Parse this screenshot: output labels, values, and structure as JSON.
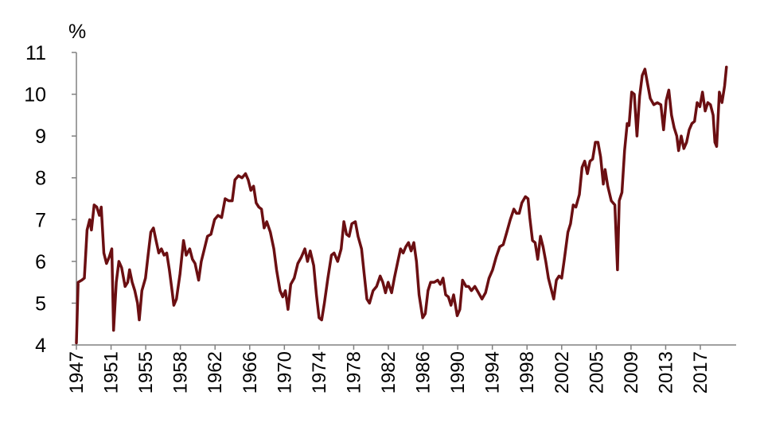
{
  "chart_data": {
    "type": "line",
    "title": "",
    "xlabel": "",
    "ylabel": "%",
    "ylim": [
      4,
      11
    ],
    "yticks": [
      4,
      5,
      6,
      7,
      8,
      9,
      10,
      11
    ],
    "xlim": [
      1947,
      2021.5
    ],
    "xtick_labels": [
      "1947",
      "1951",
      "1955",
      "1958",
      "1962",
      "1966",
      "1970",
      "1974",
      "1978",
      "1982",
      "1986",
      "1990",
      "1994",
      "1998",
      "2002",
      "2005",
      "2009",
      "2013",
      "2017"
    ],
    "grid": false,
    "legend": "none",
    "colors": {
      "line": "#6b0f12",
      "axis": "#808080"
    },
    "series": [
      {
        "values": [
          [
            1947.0,
            4.05
          ],
          [
            1947.2,
            5.5
          ],
          [
            1947.6,
            5.55
          ],
          [
            1947.9,
            5.6
          ],
          [
            1948.2,
            6.75
          ],
          [
            1948.5,
            7.0
          ],
          [
            1948.7,
            6.75
          ],
          [
            1949.0,
            7.35
          ],
          [
            1949.3,
            7.3
          ],
          [
            1949.6,
            7.1
          ],
          [
            1949.8,
            7.3
          ],
          [
            1950.1,
            6.2
          ],
          [
            1950.4,
            5.95
          ],
          [
            1950.7,
            6.1
          ],
          [
            1951.0,
            6.3
          ],
          [
            1951.2,
            4.35
          ],
          [
            1951.5,
            5.5
          ],
          [
            1951.8,
            6.0
          ],
          [
            1952.1,
            5.85
          ],
          [
            1952.5,
            5.4
          ],
          [
            1952.8,
            5.5
          ],
          [
            1953.0,
            5.8
          ],
          [
            1953.3,
            5.5
          ],
          [
            1953.6,
            5.3
          ],
          [
            1953.9,
            5.0
          ],
          [
            1954.1,
            4.6
          ],
          [
            1954.4,
            5.3
          ],
          [
            1954.8,
            5.6
          ],
          [
            1955.1,
            6.15
          ],
          [
            1955.4,
            6.7
          ],
          [
            1955.7,
            6.8
          ],
          [
            1956.0,
            6.5
          ],
          [
            1956.3,
            6.2
          ],
          [
            1956.6,
            6.3
          ],
          [
            1956.9,
            6.15
          ],
          [
            1957.2,
            6.2
          ],
          [
            1957.5,
            5.8
          ],
          [
            1957.8,
            5.3
          ],
          [
            1958.0,
            4.95
          ],
          [
            1958.3,
            5.1
          ],
          [
            1958.7,
            5.7
          ],
          [
            1959.1,
            6.5
          ],
          [
            1959.4,
            6.15
          ],
          [
            1959.8,
            6.3
          ],
          [
            1960.1,
            6.05
          ],
          [
            1960.4,
            5.95
          ],
          [
            1960.8,
            5.55
          ],
          [
            1961.1,
            6.0
          ],
          [
            1961.4,
            6.25
          ],
          [
            1961.8,
            6.6
          ],
          [
            1962.2,
            6.65
          ],
          [
            1962.6,
            7.0
          ],
          [
            1963.0,
            7.1
          ],
          [
            1963.4,
            7.05
          ],
          [
            1963.8,
            7.5
          ],
          [
            1964.2,
            7.45
          ],
          [
            1964.6,
            7.45
          ],
          [
            1964.9,
            7.95
          ],
          [
            1965.3,
            8.05
          ],
          [
            1965.7,
            8.0
          ],
          [
            1966.1,
            8.1
          ],
          [
            1966.4,
            7.95
          ],
          [
            1966.7,
            7.7
          ],
          [
            1967.0,
            7.8
          ],
          [
            1967.3,
            7.4
          ],
          [
            1967.6,
            7.3
          ],
          [
            1967.9,
            7.25
          ],
          [
            1968.2,
            6.8
          ],
          [
            1968.5,
            6.95
          ],
          [
            1968.9,
            6.7
          ],
          [
            1969.3,
            6.3
          ],
          [
            1969.6,
            5.8
          ],
          [
            1970.0,
            5.3
          ],
          [
            1970.3,
            5.15
          ],
          [
            1970.6,
            5.3
          ],
          [
            1970.9,
            4.85
          ],
          [
            1971.2,
            5.45
          ],
          [
            1971.6,
            5.6
          ],
          [
            1972.0,
            5.95
          ],
          [
            1972.4,
            6.1
          ],
          [
            1972.8,
            6.3
          ],
          [
            1973.1,
            6.0
          ],
          [
            1973.4,
            6.25
          ],
          [
            1973.8,
            5.9
          ],
          [
            1974.1,
            5.2
          ],
          [
            1974.4,
            4.65
          ],
          [
            1974.7,
            4.6
          ],
          [
            1975.0,
            5.0
          ],
          [
            1975.4,
            5.6
          ],
          [
            1975.8,
            6.15
          ],
          [
            1976.1,
            6.2
          ],
          [
            1976.5,
            6.0
          ],
          [
            1976.9,
            6.3
          ],
          [
            1977.2,
            6.95
          ],
          [
            1977.5,
            6.65
          ],
          [
            1977.8,
            6.6
          ],
          [
            1978.1,
            6.9
          ],
          [
            1978.5,
            6.95
          ],
          [
            1978.8,
            6.6
          ],
          [
            1979.2,
            6.3
          ],
          [
            1979.5,
            5.7
          ],
          [
            1979.8,
            5.1
          ],
          [
            1980.1,
            5.0
          ],
          [
            1980.5,
            5.3
          ],
          [
            1980.9,
            5.4
          ],
          [
            1981.3,
            5.65
          ],
          [
            1981.6,
            5.5
          ],
          [
            1981.9,
            5.25
          ],
          [
            1982.2,
            5.5
          ],
          [
            1982.6,
            5.25
          ],
          [
            1982.9,
            5.6
          ],
          [
            1983.3,
            6.0
          ],
          [
            1983.6,
            6.3
          ],
          [
            1983.9,
            6.2
          ],
          [
            1984.2,
            6.35
          ],
          [
            1984.5,
            6.45
          ],
          [
            1984.8,
            6.25
          ],
          [
            1985.1,
            6.45
          ],
          [
            1985.4,
            6.0
          ],
          [
            1985.7,
            5.2
          ],
          [
            1986.1,
            4.65
          ],
          [
            1986.4,
            4.75
          ],
          [
            1986.7,
            5.3
          ],
          [
            1987.0,
            5.5
          ],
          [
            1987.4,
            5.5
          ],
          [
            1987.8,
            5.55
          ],
          [
            1988.1,
            5.45
          ],
          [
            1988.4,
            5.6
          ],
          [
            1988.7,
            5.2
          ],
          [
            1989.0,
            5.15
          ],
          [
            1989.3,
            4.95
          ],
          [
            1989.6,
            5.2
          ],
          [
            1990.0,
            4.7
          ],
          [
            1990.3,
            4.85
          ],
          [
            1990.6,
            5.55
          ],
          [
            1991.0,
            5.4
          ],
          [
            1991.3,
            5.4
          ],
          [
            1991.6,
            5.3
          ],
          [
            1992.0,
            5.4
          ],
          [
            1992.4,
            5.25
          ],
          [
            1992.8,
            5.1
          ],
          [
            1993.2,
            5.25
          ],
          [
            1993.6,
            5.6
          ],
          [
            1994.0,
            5.8
          ],
          [
            1994.4,
            6.1
          ],
          [
            1994.8,
            6.35
          ],
          [
            1995.2,
            6.4
          ],
          [
            1995.6,
            6.7
          ],
          [
            1996.0,
            7.0
          ],
          [
            1996.4,
            7.25
          ],
          [
            1996.7,
            7.15
          ],
          [
            1997.0,
            7.15
          ],
          [
            1997.3,
            7.4
          ],
          [
            1997.7,
            7.55
          ],
          [
            1998.0,
            7.5
          ],
          [
            1998.2,
            7.05
          ],
          [
            1998.5,
            6.5
          ],
          [
            1998.8,
            6.45
          ],
          [
            1999.1,
            6.05
          ],
          [
            1999.4,
            6.6
          ],
          [
            1999.7,
            6.35
          ],
          [
            2000.0,
            6.0
          ],
          [
            2000.3,
            5.6
          ],
          [
            2000.6,
            5.35
          ],
          [
            2000.9,
            5.1
          ],
          [
            2001.2,
            5.55
          ],
          [
            2001.5,
            5.65
          ],
          [
            2001.8,
            5.6
          ],
          [
            2002.1,
            6.05
          ],
          [
            2002.5,
            6.7
          ],
          [
            2002.8,
            6.9
          ],
          [
            2003.1,
            7.35
          ],
          [
            2003.4,
            7.3
          ],
          [
            2003.8,
            7.6
          ],
          [
            2004.1,
            8.25
          ],
          [
            2004.4,
            8.4
          ],
          [
            2004.7,
            8.1
          ],
          [
            2005.0,
            8.4
          ],
          [
            2005.3,
            8.45
          ],
          [
            2005.6,
            8.85
          ],
          [
            2005.9,
            8.85
          ],
          [
            2006.2,
            8.5
          ],
          [
            2006.5,
            7.85
          ],
          [
            2006.7,
            8.2
          ],
          [
            2007.0,
            7.8
          ],
          [
            2007.4,
            7.45
          ],
          [
            2007.8,
            7.35
          ],
          [
            2008.1,
            5.8
          ],
          [
            2008.3,
            7.45
          ],
          [
            2008.6,
            7.65
          ],
          [
            2008.9,
            8.65
          ],
          [
            2009.2,
            9.3
          ],
          [
            2009.4,
            9.25
          ],
          [
            2009.7,
            10.05
          ],
          [
            2010.0,
            10.0
          ],
          [
            2010.3,
            9.0
          ],
          [
            2010.6,
            9.95
          ],
          [
            2010.9,
            10.45
          ],
          [
            2011.2,
            10.6
          ],
          [
            2011.5,
            10.25
          ],
          [
            2011.8,
            9.9
          ],
          [
            2012.2,
            9.75
          ],
          [
            2012.6,
            9.8
          ],
          [
            2013.0,
            9.75
          ],
          [
            2013.3,
            9.15
          ],
          [
            2013.6,
            9.85
          ],
          [
            2013.9,
            10.1
          ],
          [
            2014.2,
            9.5
          ],
          [
            2014.5,
            9.2
          ],
          [
            2014.8,
            9.0
          ],
          [
            2015.0,
            8.65
          ],
          [
            2015.3,
            9.0
          ],
          [
            2015.6,
            8.7
          ],
          [
            2015.9,
            8.85
          ],
          [
            2016.2,
            9.15
          ],
          [
            2016.5,
            9.3
          ],
          [
            2016.8,
            9.35
          ],
          [
            2017.1,
            9.8
          ],
          [
            2017.4,
            9.7
          ],
          [
            2017.7,
            10.05
          ],
          [
            2018.0,
            9.6
          ],
          [
            2018.3,
            9.8
          ],
          [
            2018.6,
            9.75
          ],
          [
            2018.9,
            9.5
          ],
          [
            2019.1,
            8.85
          ],
          [
            2019.3,
            8.75
          ],
          [
            2019.6,
            10.05
          ],
          [
            2019.9,
            9.8
          ],
          [
            2020.2,
            10.2
          ],
          [
            2020.4,
            10.65
          ]
        ]
      }
    ]
  }
}
